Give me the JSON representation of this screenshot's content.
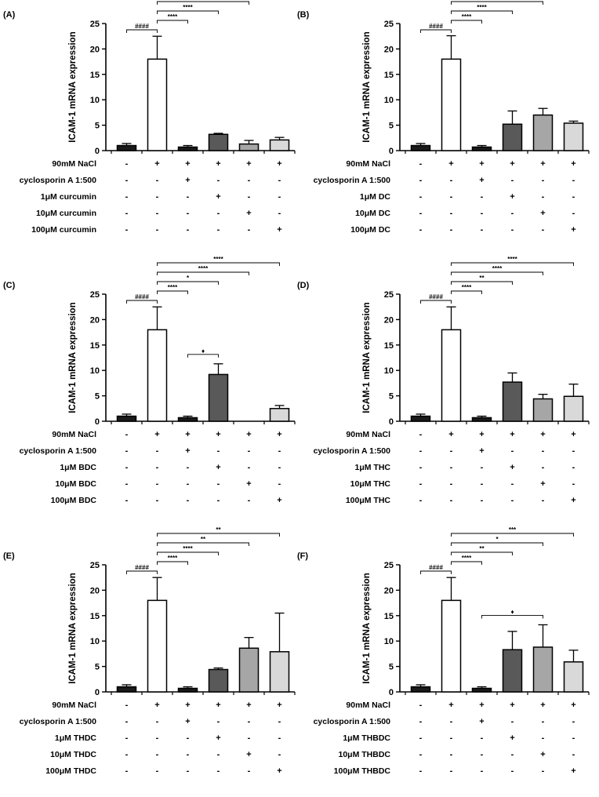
{
  "y_axis_label": "ICAM-1 mRNA expression",
  "row_labels_common": [
    "90mM NaCl",
    "cyclosporin A 1:500"
  ],
  "colors": {
    "control": "#1a1a1a",
    "nacl": "#ffffff",
    "cyclosporin": "#1a1a1a",
    "low": "#595959",
    "mid": "#a6a6a6",
    "high": "#d9d9d9",
    "stroke": "#000000"
  },
  "chart_data": [
    {
      "type": "bar",
      "panel": "(A)",
      "compound": "curcumin",
      "row_labels": [
        "90mM NaCl",
        "cyclosporin A 1:500",
        "1μM  curcumin",
        "10μM  curcumin",
        "100μM  curcumin"
      ],
      "conditions": [
        [
          "-",
          "+",
          "+",
          "+",
          "+",
          "+"
        ],
        [
          "-",
          "-",
          "+",
          "-",
          "-",
          "-"
        ],
        [
          "-",
          "-",
          "-",
          "+",
          "-",
          "-"
        ],
        [
          "-",
          "-",
          "-",
          "-",
          "+",
          "-"
        ],
        [
          "-",
          "-",
          "-",
          "-",
          "-",
          "+"
        ]
      ],
      "values": [
        1.0,
        18.0,
        0.7,
        3.2,
        1.3,
        2.1
      ],
      "errors": [
        0.4,
        4.5,
        0.3,
        0.2,
        0.7,
        0.5
      ],
      "ylim": [
        0,
        25
      ],
      "yticks": [
        "0",
        "5",
        "10",
        "15",
        "20",
        "25"
      ],
      "annotations": [
        {
          "from": 0,
          "to": 1,
          "label": "####"
        },
        {
          "from": 1,
          "to": 2,
          "label": "****"
        },
        {
          "from": 1,
          "to": 3,
          "label": "****"
        },
        {
          "from": 1,
          "to": 4,
          "label": "****"
        },
        {
          "from": 1,
          "to": 5,
          "label": "****"
        }
      ]
    },
    {
      "type": "bar",
      "panel": "(B)",
      "compound": "DC",
      "row_labels": [
        "90mM NaCl",
        "cyclosporin A 1:500",
        "1μM  DC",
        "10μM  DC",
        "100μM  DC"
      ],
      "conditions": [
        [
          "-",
          "+",
          "+",
          "+",
          "+",
          "+"
        ],
        [
          "-",
          "-",
          "+",
          "-",
          "-",
          "-"
        ],
        [
          "-",
          "-",
          "-",
          "+",
          "-",
          "-"
        ],
        [
          "-",
          "-",
          "-",
          "-",
          "+",
          "-"
        ],
        [
          "-",
          "-",
          "-",
          "-",
          "-",
          "+"
        ]
      ],
      "values": [
        1.0,
        18.0,
        0.7,
        5.2,
        7.0,
        5.4
      ],
      "errors": [
        0.4,
        4.6,
        0.3,
        2.6,
        1.3,
        0.4
      ],
      "ylim": [
        0,
        25
      ],
      "yticks": [
        "0",
        "5",
        "10",
        "15",
        "20",
        "25"
      ],
      "annotations": [
        {
          "from": 0,
          "to": 1,
          "label": "####"
        },
        {
          "from": 1,
          "to": 2,
          "label": "****"
        },
        {
          "from": 1,
          "to": 3,
          "label": "****"
        },
        {
          "from": 1,
          "to": 4,
          "label": "**"
        },
        {
          "from": 1,
          "to": 5,
          "label": "****"
        }
      ]
    },
    {
      "type": "bar",
      "panel": "(C)",
      "compound": "BDC",
      "row_labels": [
        "90mM NaCl",
        "cyclosporin A 1:500",
        "1μM  BDC",
        "10μM  BDC",
        "100μM  BDC"
      ],
      "conditions": [
        [
          "-",
          "+",
          "+",
          "+",
          "+",
          "+"
        ],
        [
          "-",
          "-",
          "+",
          "-",
          "-",
          "-"
        ],
        [
          "-",
          "-",
          "-",
          "+",
          "-",
          "-"
        ],
        [
          "-",
          "-",
          "-",
          "-",
          "+",
          "-"
        ],
        [
          "-",
          "-",
          "-",
          "-",
          "-",
          "+"
        ]
      ],
      "values": [
        1.0,
        18.0,
        0.7,
        9.2,
        0.0,
        2.5
      ],
      "errors": [
        0.4,
        4.5,
        0.3,
        2.1,
        0.0,
        0.6
      ],
      "ylim": [
        0,
        25
      ],
      "yticks": [
        "0",
        "5",
        "10",
        "15",
        "20",
        "25"
      ],
      "annotations": [
        {
          "from": 0,
          "to": 1,
          "label": "####"
        },
        {
          "from": 1,
          "to": 2,
          "label": "****"
        },
        {
          "from": 1,
          "to": 3,
          "label": "*"
        },
        {
          "from": 1,
          "to": 4,
          "label": "****"
        },
        {
          "from": 1,
          "to": 5,
          "label": "****"
        },
        {
          "from": 2,
          "to": 3,
          "label": "♦",
          "inner": true
        }
      ]
    },
    {
      "type": "bar",
      "panel": "(D)",
      "compound": "THC",
      "row_labels": [
        "90mM NaCl",
        "cyclosporin A 1:500",
        "1μM  THC",
        "10μM  THC",
        "100μM  THC"
      ],
      "conditions": [
        [
          "-",
          "+",
          "+",
          "+",
          "+",
          "+"
        ],
        [
          "-",
          "-",
          "+",
          "-",
          "-",
          "-"
        ],
        [
          "-",
          "-",
          "-",
          "+",
          "-",
          "-"
        ],
        [
          "-",
          "-",
          "-",
          "-",
          "+",
          "-"
        ],
        [
          "-",
          "-",
          "-",
          "-",
          "-",
          "+"
        ]
      ],
      "values": [
        1.0,
        18.0,
        0.7,
        7.7,
        4.4,
        4.9
      ],
      "errors": [
        0.4,
        4.5,
        0.3,
        1.8,
        0.9,
        2.4
      ],
      "ylim": [
        0,
        25
      ],
      "yticks": [
        "0",
        "5",
        "10",
        "15",
        "20",
        "25"
      ],
      "annotations": [
        {
          "from": 0,
          "to": 1,
          "label": "####"
        },
        {
          "from": 1,
          "to": 2,
          "label": "****"
        },
        {
          "from": 1,
          "to": 3,
          "label": "**"
        },
        {
          "from": 1,
          "to": 4,
          "label": "****"
        },
        {
          "from": 1,
          "to": 5,
          "label": "****"
        }
      ]
    },
    {
      "type": "bar",
      "panel": "(E)",
      "compound": "THDC",
      "row_labels": [
        "90mM NaCl",
        "cyclosporin A 1:500",
        "1μM  THDC",
        "10μM  THDC",
        "100μM  THDC"
      ],
      "conditions": [
        [
          "-",
          "+",
          "+",
          "+",
          "+",
          "+"
        ],
        [
          "-",
          "-",
          "+",
          "-",
          "-",
          "-"
        ],
        [
          "-",
          "-",
          "-",
          "+",
          "-",
          "-"
        ],
        [
          "-",
          "-",
          "-",
          "-",
          "+",
          "-"
        ],
        [
          "-",
          "-",
          "-",
          "-",
          "-",
          "+"
        ]
      ],
      "values": [
        1.0,
        18.0,
        0.7,
        4.4,
        8.6,
        7.9
      ],
      "errors": [
        0.4,
        4.5,
        0.3,
        0.3,
        2.1,
        7.6
      ],
      "ylim": [
        0,
        25
      ],
      "yticks": [
        "0",
        "5",
        "10",
        "15",
        "20",
        "25"
      ],
      "annotations": [
        {
          "from": 0,
          "to": 1,
          "label": "####"
        },
        {
          "from": 1,
          "to": 2,
          "label": "****"
        },
        {
          "from": 1,
          "to": 3,
          "label": "****"
        },
        {
          "from": 1,
          "to": 4,
          "label": "**"
        },
        {
          "from": 1,
          "to": 5,
          "label": "**"
        }
      ]
    },
    {
      "type": "bar",
      "panel": "(F)",
      "compound": "THBDC",
      "row_labels": [
        "90mM NaCl",
        "cyclosporin A 1:500",
        "1μM  THBDC",
        "10μM  THBDC",
        "100μM  THBDC"
      ],
      "conditions": [
        [
          "-",
          "+",
          "+",
          "+",
          "+",
          "+"
        ],
        [
          "-",
          "-",
          "+",
          "-",
          "-",
          "-"
        ],
        [
          "-",
          "-",
          "-",
          "+",
          "-",
          "-"
        ],
        [
          "-",
          "-",
          "-",
          "-",
          "+",
          "-"
        ],
        [
          "-",
          "-",
          "-",
          "-",
          "-",
          "+"
        ]
      ],
      "values": [
        1.0,
        18.0,
        0.7,
        8.3,
        8.8,
        5.9
      ],
      "errors": [
        0.4,
        4.5,
        0.3,
        3.6,
        4.4,
        2.3
      ],
      "ylim": [
        0,
        25
      ],
      "yticks": [
        "0",
        "5",
        "10",
        "15",
        "20",
        "25"
      ],
      "annotations": [
        {
          "from": 0,
          "to": 1,
          "label": "####"
        },
        {
          "from": 1,
          "to": 2,
          "label": "****"
        },
        {
          "from": 1,
          "to": 3,
          "label": "**"
        },
        {
          "from": 1,
          "to": 4,
          "label": "*"
        },
        {
          "from": 1,
          "to": 5,
          "label": "***"
        },
        {
          "from": 2,
          "to": 4,
          "label": "♦",
          "inner": true
        }
      ]
    }
  ]
}
